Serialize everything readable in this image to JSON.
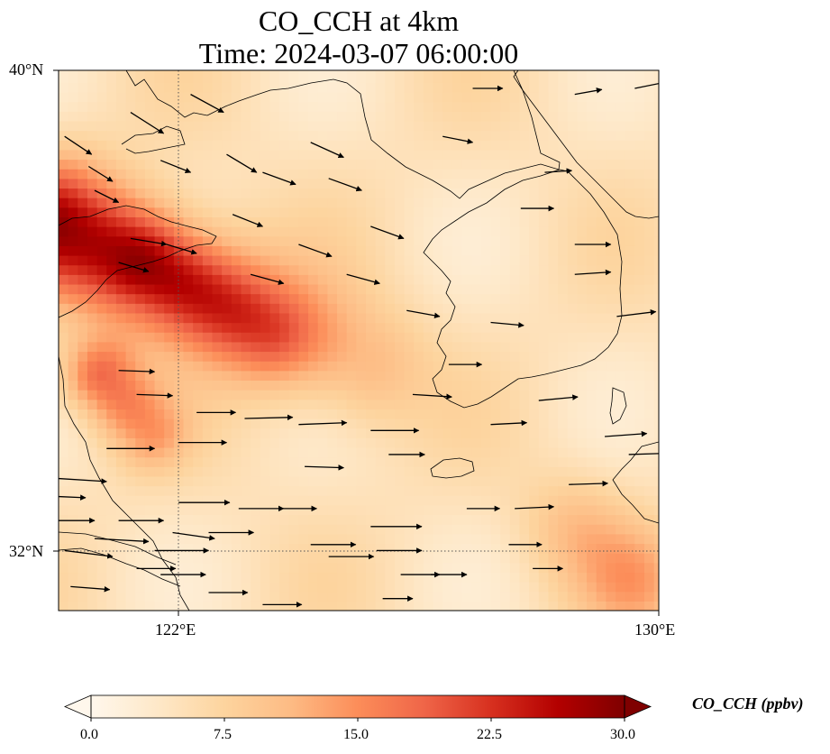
{
  "title": {
    "line1": "CO_CCH at 4km",
    "line2": "Time: 2024-03-07 06:00:00"
  },
  "map": {
    "projection": "PlateCarree",
    "lon_range": [
      120,
      130
    ],
    "lat_range": [
      31,
      40
    ],
    "gridlines": [
      {
        "type": "lon",
        "value": 122
      },
      {
        "type": "lat",
        "value": 32
      }
    ],
    "lat_ticks": [
      {
        "value": 40,
        "label": "40°N"
      },
      {
        "value": 32,
        "label": "32°N"
      }
    ],
    "lon_ticks": [
      {
        "value": 122,
        "label": "122°E"
      },
      {
        "value": 130,
        "label": "130°E"
      }
    ],
    "field": {
      "variable": "CO_CCH",
      "colormap": "OrRd",
      "background_value": 5,
      "plumes": [
        {
          "from": [
            120.0,
            37.4
          ],
          "to": [
            125.0,
            35.1
          ],
          "peak": 27,
          "edge": 12,
          "width_deg": 0.75
        },
        {
          "from": [
            120.7,
            34.9
          ],
          "to": [
            121.5,
            34.0
          ],
          "peak": 18,
          "edge": 13,
          "width_deg": 0.45
        },
        {
          "from": [
            121.5,
            36.8
          ],
          "to": [
            123.5,
            35.6
          ],
          "peak": 13,
          "edge": 11,
          "width_deg": 0.5
        }
      ],
      "highs": [
        {
          "lon": 129.6,
          "lat": 31.5,
          "value": 12
        },
        {
          "lon": 128.6,
          "lat": 32.4,
          "value": 10
        }
      ]
    },
    "wind_vectors": [
      [
        120.1,
        38.9,
        0.45,
        -0.3
      ],
      [
        120.5,
        38.4,
        0.4,
        -0.25
      ],
      [
        120.6,
        38.0,
        0.4,
        -0.2
      ],
      [
        121.2,
        39.3,
        0.55,
        -0.35
      ],
      [
        122.2,
        39.6,
        0.55,
        -0.3
      ],
      [
        121.7,
        38.5,
        0.5,
        -0.2
      ],
      [
        121.2,
        37.2,
        0.6,
        -0.1
      ],
      [
        121.0,
        36.8,
        0.5,
        -0.15
      ],
      [
        121.8,
        37.1,
        0.5,
        -0.15
      ],
      [
        122.8,
        38.6,
        0.5,
        -0.3
      ],
      [
        122.9,
        37.6,
        0.5,
        -0.2
      ],
      [
        123.4,
        38.3,
        0.55,
        -0.2
      ],
      [
        124.2,
        38.8,
        0.55,
        -0.25
      ],
      [
        124.5,
        38.2,
        0.55,
        -0.2
      ],
      [
        125.2,
        37.4,
        0.55,
        -0.2
      ],
      [
        124.0,
        37.1,
        0.55,
        -0.2
      ],
      [
        123.2,
        36.6,
        0.55,
        -0.15
      ],
      [
        124.8,
        36.6,
        0.55,
        -0.15
      ],
      [
        125.8,
        36.0,
        0.55,
        -0.1
      ],
      [
        126.9,
        39.7,
        0.5,
        0.0
      ],
      [
        128.6,
        39.6,
        0.45,
        0.08
      ],
      [
        129.6,
        39.7,
        0.5,
        0.1
      ],
      [
        126.4,
        38.9,
        0.5,
        -0.1
      ],
      [
        128.1,
        38.3,
        0.45,
        0.03
      ],
      [
        127.7,
        37.7,
        0.55,
        0.0
      ],
      [
        128.6,
        37.1,
        0.6,
        0.0
      ],
      [
        128.6,
        36.6,
        0.6,
        0.04
      ],
      [
        129.3,
        35.9,
        0.65,
        0.08
      ],
      [
        127.2,
        35.8,
        0.55,
        -0.05
      ],
      [
        126.5,
        35.1,
        0.55,
        0.0
      ],
      [
        125.9,
        34.6,
        0.65,
        -0.04
      ],
      [
        127.2,
        34.1,
        0.6,
        0.03
      ],
      [
        128.0,
        34.5,
        0.65,
        0.06
      ],
      [
        129.1,
        33.9,
        0.7,
        0.05
      ],
      [
        129.5,
        33.6,
        0.6,
        0.02
      ],
      [
        128.5,
        33.1,
        0.65,
        0.02
      ],
      [
        127.6,
        32.7,
        0.65,
        0.03
      ],
      [
        126.8,
        32.7,
        0.55,
        0.0
      ],
      [
        127.5,
        32.1,
        0.55,
        0.0
      ],
      [
        127.9,
        31.7,
        0.5,
        0.0
      ],
      [
        125.2,
        34.0,
        0.8,
        0.0
      ],
      [
        124.0,
        34.1,
        0.8,
        0.03
      ],
      [
        125.5,
        33.6,
        0.6,
        0.0
      ],
      [
        124.1,
        33.4,
        0.65,
        -0.02
      ],
      [
        121.0,
        35.0,
        0.6,
        -0.02
      ],
      [
        121.3,
        34.6,
        0.6,
        -0.02
      ],
      [
        122.3,
        34.3,
        0.65,
        0.0
      ],
      [
        123.1,
        34.2,
        0.8,
        0.02
      ],
      [
        120.8,
        33.7,
        0.8,
        0.0
      ],
      [
        122.0,
        33.8,
        0.8,
        0.0
      ],
      [
        122.0,
        32.8,
        0.85,
        0.0
      ],
      [
        123.0,
        32.7,
        0.75,
        0.0
      ],
      [
        122.5,
        32.3,
        0.75,
        0.0
      ],
      [
        123.7,
        32.7,
        0.6,
        0.0
      ],
      [
        124.2,
        32.1,
        0.75,
        0.0
      ],
      [
        125.2,
        32.4,
        0.85,
        0.0
      ],
      [
        125.3,
        32.0,
        0.75,
        0.0
      ],
      [
        125.7,
        31.6,
        0.65,
        0.0
      ],
      [
        126.2,
        31.6,
        0.6,
        0.0
      ],
      [
        125.4,
        31.2,
        0.5,
        0.0
      ],
      [
        124.5,
        31.9,
        0.75,
        0.0
      ],
      [
        123.4,
        31.1,
        0.65,
        0.0
      ],
      [
        122.5,
        31.3,
        0.65,
        0.0
      ],
      [
        121.7,
        31.6,
        0.75,
        0.0
      ],
      [
        120.0,
        33.2,
        0.8,
        -0.05
      ],
      [
        120.0,
        32.5,
        0.6,
        0.0
      ],
      [
        120.1,
        32.0,
        0.8,
        -0.1
      ],
      [
        120.0,
        32.9,
        0.45,
        -0.02
      ],
      [
        121.0,
        32.5,
        0.75,
        0.0
      ],
      [
        121.3,
        31.7,
        0.65,
        0.0
      ],
      [
        120.2,
        31.4,
        0.65,
        -0.05
      ],
      [
        120.6,
        32.2,
        0.9,
        -0.05
      ],
      [
        121.6,
        32.0,
        0.9,
        0.0
      ],
      [
        121.9,
        32.3,
        0.7,
        -0.1
      ]
    ]
  },
  "colorbar": {
    "colormap": "OrRd",
    "min": 0,
    "max": 30,
    "ticks": [
      {
        "value": 0,
        "label": "0.0"
      },
      {
        "value": 7.5,
        "label": "7.5"
      },
      {
        "value": 15,
        "label": "15.0"
      },
      {
        "value": 22.5,
        "label": "22.5"
      },
      {
        "value": 30,
        "label": "30.0"
      }
    ],
    "extend": "both",
    "label": "CO_CCH (ppbv)"
  }
}
